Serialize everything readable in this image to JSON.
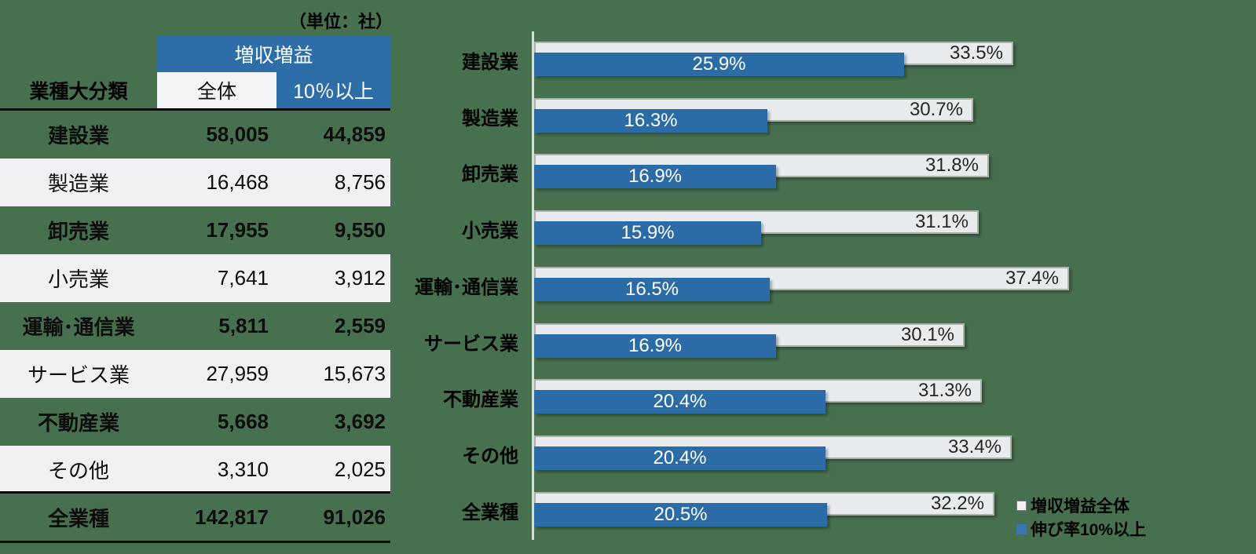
{
  "unit_label": "（単位：社）",
  "colors": {
    "background_green": "#47704E",
    "accent_blue": "#2D6DA8",
    "bar_blue": "#2C6CA6",
    "bar_gray": "#E9ECEF",
    "row_alt": "#F1F1F3"
  },
  "table": {
    "category_header": "業種大分類",
    "group_header": "増収増益",
    "col_total": "全体",
    "col_over10": "10％以上",
    "rows": [
      {
        "name": "建設業",
        "total": "58,005",
        "over10": "44,859"
      },
      {
        "name": "製造業",
        "total": "16,468",
        "over10": "8,756"
      },
      {
        "name": "卸売業",
        "total": "17,955",
        "over10": "9,550"
      },
      {
        "name": "小売業",
        "total": "7,641",
        "over10": "3,912"
      },
      {
        "name": "運輸･通信業",
        "total": "5,811",
        "over10": "2,559"
      },
      {
        "name": "サービス業",
        "total": "27,959",
        "over10": "15,673"
      },
      {
        "name": "不動産業",
        "total": "5,668",
        "over10": "3,692"
      },
      {
        "name": "その他",
        "total": "3,310",
        "over10": "2,025"
      },
      {
        "name": "全業種",
        "total": "142,817",
        "over10": "91,026"
      }
    ]
  },
  "chart_data": {
    "type": "bar",
    "orientation": "horizontal",
    "categories": [
      "建設業",
      "製造業",
      "卸売業",
      "小売業",
      "運輸･通信業",
      "サービス業",
      "不動産業",
      "その他",
      "全業種"
    ],
    "series": [
      {
        "name": "増収増益全体",
        "values": [
          33.5,
          30.7,
          31.8,
          31.1,
          37.4,
          30.1,
          31.3,
          33.4,
          32.2
        ]
      },
      {
        "name": "伸び率10%以上",
        "values": [
          25.9,
          16.3,
          16.9,
          15.9,
          16.5,
          16.9,
          20.4,
          20.4,
          20.5
        ]
      }
    ],
    "value_suffix": "%",
    "xlim": [
      0,
      45
    ],
    "grid": false,
    "legend_position": "bottom-right"
  },
  "chart": {
    "rows": [
      {
        "label": "建設業",
        "overall_pct": 33.5,
        "overall_label": "33.5%",
        "growth_pct": 25.9,
        "growth_label": "25.9%"
      },
      {
        "label": "製造業",
        "overall_pct": 30.7,
        "overall_label": "30.7%",
        "growth_pct": 16.3,
        "growth_label": "16.3%"
      },
      {
        "label": "卸売業",
        "overall_pct": 31.8,
        "overall_label": "31.8%",
        "growth_pct": 16.9,
        "growth_label": "16.9%"
      },
      {
        "label": "小売業",
        "overall_pct": 31.1,
        "overall_label": "31.1%",
        "growth_pct": 15.9,
        "growth_label": "15.9%"
      },
      {
        "label": "運輸･通信業",
        "overall_pct": 37.4,
        "overall_label": "37.4%",
        "growth_pct": 16.5,
        "growth_label": "16.5%"
      },
      {
        "label": "サービス業",
        "overall_pct": 30.1,
        "overall_label": "30.1%",
        "growth_pct": 16.9,
        "growth_label": "16.9%"
      },
      {
        "label": "不動産業",
        "overall_pct": 31.3,
        "overall_label": "31.3%",
        "growth_pct": 20.4,
        "growth_label": "20.4%"
      },
      {
        "label": "その他",
        "overall_pct": 33.4,
        "overall_label": "33.4%",
        "growth_pct": 20.4,
        "growth_label": "20.4%"
      },
      {
        "label": "全業種",
        "overall_pct": 32.2,
        "overall_label": "32.2%",
        "growth_pct": 20.5,
        "growth_label": "20.5%"
      }
    ],
    "legend": [
      {
        "label": "増収増益全体"
      },
      {
        "label": "伸び率10%以上"
      }
    ]
  }
}
